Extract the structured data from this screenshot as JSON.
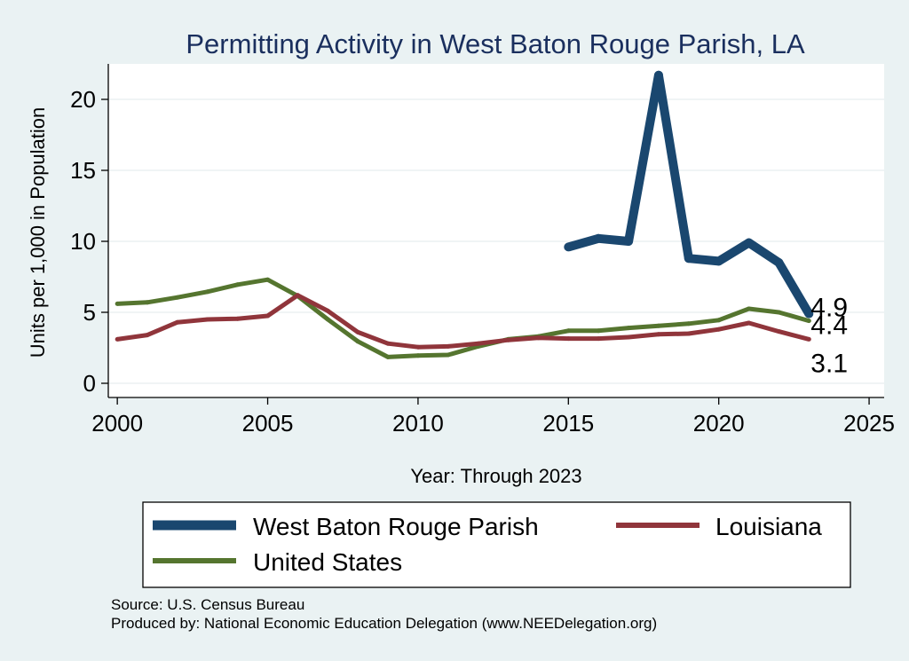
{
  "chart_data": {
    "type": "line",
    "title": "Permitting Activity in West Baton Rouge Parish, LA",
    "xlabel": "Year: Through 2023",
    "ylabel": "Units per 1,000 in Population",
    "xlim": [
      1999.7,
      2025.5
    ],
    "ylim": [
      -1,
      22.5
    ],
    "x_ticks": [
      2000,
      2005,
      2010,
      2015,
      2020,
      2025
    ],
    "y_ticks": [
      0,
      5,
      10,
      15,
      20
    ],
    "grid": true,
    "series": [
      {
        "name": "West Baton Rouge Parish",
        "color": "#1a476f",
        "x": [
          2015,
          2016,
          2017,
          2018,
          2019,
          2020,
          2021,
          2022,
          2023
        ],
        "y": [
          9.6,
          10.2,
          10.0,
          21.7,
          8.8,
          8.6,
          9.9,
          8.5,
          4.9
        ],
        "end_label": "4.9"
      },
      {
        "name": "Louisiana",
        "color": "#90353b",
        "x": [
          2000,
          2001,
          2002,
          2003,
          2004,
          2005,
          2006,
          2007,
          2008,
          2009,
          2010,
          2011,
          2012,
          2013,
          2014,
          2015,
          2016,
          2017,
          2018,
          2019,
          2020,
          2021,
          2022,
          2023
        ],
        "y": [
          3.1,
          3.4,
          4.3,
          4.5,
          4.55,
          4.75,
          6.2,
          5.1,
          3.6,
          2.8,
          2.55,
          2.6,
          2.8,
          3.05,
          3.2,
          3.15,
          3.15,
          3.25,
          3.45,
          3.5,
          3.8,
          4.25,
          3.65,
          3.1
        ],
        "end_label": "3.1"
      },
      {
        "name": "United States",
        "color": "#55752f",
        "x": [
          2000,
          2001,
          2002,
          2003,
          2004,
          2005,
          2006,
          2007,
          2008,
          2009,
          2010,
          2011,
          2012,
          2013,
          2014,
          2015,
          2016,
          2017,
          2018,
          2019,
          2020,
          2021,
          2022,
          2023
        ],
        "y": [
          5.6,
          5.7,
          6.05,
          6.45,
          6.95,
          7.3,
          6.15,
          4.5,
          2.95,
          1.85,
          1.95,
          2.0,
          2.6,
          3.1,
          3.3,
          3.7,
          3.7,
          3.9,
          4.05,
          4.2,
          4.45,
          5.25,
          5.0,
          4.4
        ],
        "end_label": "4.4"
      }
    ]
  },
  "legend": {
    "items": [
      "West Baton Rouge Parish",
      "Louisiana",
      "United States"
    ]
  },
  "footer": {
    "source": "Source: U.S. Census Bureau",
    "produced_by": "Produced by: National Economic Education Delegation (www.NEEDelegation.org)"
  }
}
